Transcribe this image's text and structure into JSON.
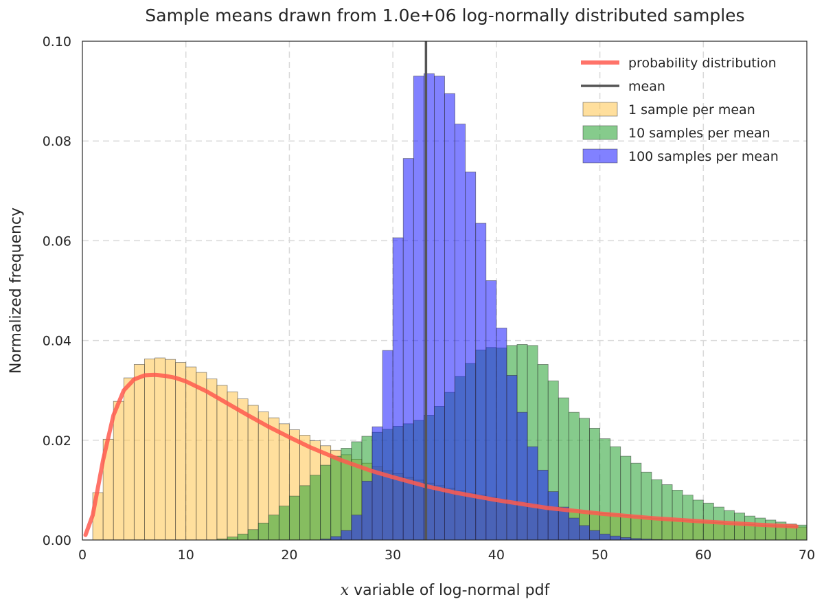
{
  "chart_data": {
    "type": "bar",
    "title": "Sample means drawn from 1.0e+06 log-normally distributed samples",
    "xlabel_var": "x",
    "xlabel_rest": "variable of log-normal pdf",
    "ylabel": "Normalized frequency",
    "xlim": [
      0,
      70
    ],
    "ylim": [
      0,
      0.1
    ],
    "xticks": [
      0,
      10,
      20,
      30,
      40,
      50,
      60,
      70
    ],
    "xtick_labels": [
      "0",
      "10",
      "20",
      "30",
      "40",
      "50",
      "60",
      "70"
    ],
    "yticks": [
      0,
      0.02,
      0.04,
      0.06,
      0.08,
      0.1
    ],
    "ytick_labels": [
      "0.00",
      "0.02",
      "0.04",
      "0.06",
      "0.08",
      "0.10"
    ],
    "grid": true,
    "legend_position": "top-right",
    "bin_width": 1,
    "bin_start": 0,
    "mean": 33.2,
    "histograms": [
      {
        "name": "1 sample per mean",
        "color": "#ffc44d",
        "values": [
          0.0,
          0.0095,
          0.0202,
          0.0278,
          0.0325,
          0.0352,
          0.0363,
          0.0365,
          0.0362,
          0.0356,
          0.0347,
          0.0336,
          0.0323,
          0.031,
          0.0297,
          0.0283,
          0.027,
          0.0257,
          0.0245,
          0.0233,
          0.0221,
          0.021,
          0.0199,
          0.0189,
          0.018,
          0.0171,
          0.0162,
          0.0154,
          0.0147,
          0.0139,
          0.0133,
          0.0126,
          0.012,
          0.0114,
          0.0109,
          0.0104,
          0.0099,
          0.0094,
          0.009,
          0.0086,
          0.0082,
          0.0078,
          0.0075,
          0.0071,
          0.0068,
          0.0065,
          0.0063,
          0.006,
          0.0058,
          0.0055,
          0.0053,
          0.0051,
          0.0049,
          0.0047,
          0.0045,
          0.0043,
          0.0042,
          0.004,
          0.0039,
          0.0037,
          0.0036,
          0.0035,
          0.0033,
          0.0032,
          0.0031,
          0.003,
          0.0029,
          0.0028,
          0.0027,
          0.0026
        ]
      },
      {
        "name": "10 samples per mean",
        "color": "#22a12d",
        "values": [
          0,
          0,
          0,
          0,
          0,
          0,
          0,
          0,
          0,
          0,
          0,
          0,
          0,
          0.0002,
          0.0006,
          0.0012,
          0.0021,
          0.0034,
          0.005,
          0.0068,
          0.0088,
          0.0109,
          0.013,
          0.015,
          0.0168,
          0.0184,
          0.0197,
          0.0208,
          0.0216,
          0.0222,
          0.0228,
          0.0233,
          0.024,
          0.025,
          0.0268,
          0.0296,
          0.0328,
          0.0354,
          0.0381,
          0.0386,
          0.0385,
          0.039,
          0.0392,
          0.039,
          0.0352,
          0.0319,
          0.0285,
          0.0256,
          0.0244,
          0.0224,
          0.0203,
          0.0187,
          0.0168,
          0.0154,
          0.0136,
          0.0121,
          0.0111,
          0.01,
          0.009,
          0.008,
          0.0074,
          0.0066,
          0.0059,
          0.0054,
          0.0048,
          0.0044,
          0.004,
          0.0036,
          0.0032,
          0.003
        ]
      },
      {
        "name": "100 samples per mean",
        "color": "#1a1aff",
        "values": [
          0,
          0,
          0,
          0,
          0,
          0,
          0,
          0,
          0,
          0,
          0,
          0,
          0,
          0,
          0,
          0,
          0,
          0,
          0,
          0,
          0,
          0,
          0,
          0.0002,
          0.0007,
          0.0019,
          0.005,
          0.0118,
          0.0227,
          0.038,
          0.0606,
          0.0765,
          0.093,
          0.0935,
          0.093,
          0.0895,
          0.0834,
          0.0738,
          0.0635,
          0.052,
          0.0425,
          0.033,
          0.0256,
          0.0187,
          0.014,
          0.0097,
          0.0066,
          0.0044,
          0.0029,
          0.0019,
          0.0012,
          0.0008,
          0.0005,
          0.0003,
          0.0002,
          0.0001,
          0,
          0,
          0,
          0,
          0,
          0,
          0,
          0,
          0,
          0,
          0,
          0,
          0,
          0
        ]
      }
    ],
    "series": [
      {
        "name": "probability distribution",
        "color": "#ff5a4f",
        "x": [
          0.3,
          1,
          2,
          3,
          4,
          5,
          6,
          7,
          7.5,
          8,
          9,
          10,
          12,
          14,
          16,
          18,
          20,
          22,
          25,
          28,
          30,
          33,
          36,
          40,
          45,
          50,
          55,
          60,
          65,
          69
        ],
        "y": [
          0.001,
          0.005,
          0.016,
          0.025,
          0.03,
          0.0322,
          0.033,
          0.0331,
          0.033,
          0.0329,
          0.0325,
          0.0318,
          0.0298,
          0.0274,
          0.025,
          0.0227,
          0.0206,
          0.0186,
          0.016,
          0.0138,
          0.0126,
          0.0109,
          0.0095,
          0.008,
          0.0064,
          0.0053,
          0.0044,
          0.0037,
          0.0031,
          0.0027
        ]
      },
      {
        "name": "mean",
        "color": "#555555"
      }
    ]
  }
}
